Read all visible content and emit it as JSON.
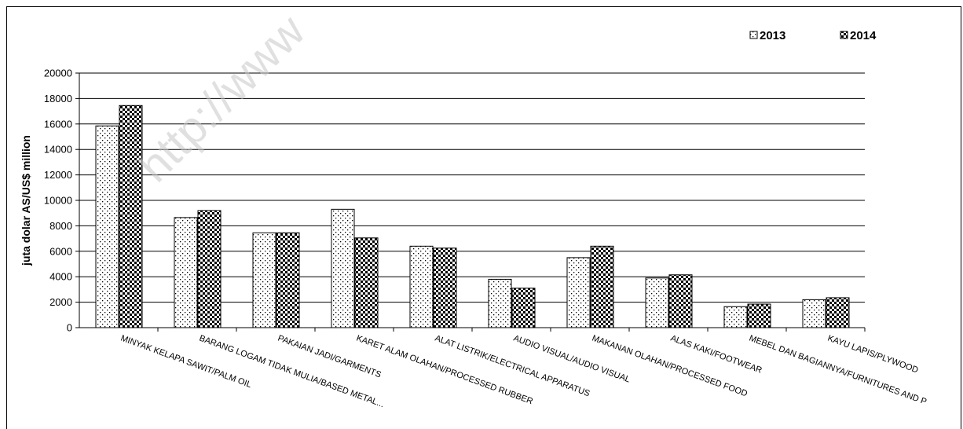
{
  "watermark": "http://www",
  "chart_data": {
    "type": "bar",
    "title": "",
    "xlabel": "",
    "ylabel": "juta dolar AS/US$ million",
    "ylim": [
      0,
      20000
    ],
    "yticks": [
      0,
      2000,
      4000,
      6000,
      8000,
      10000,
      12000,
      14000,
      16000,
      18000,
      20000
    ],
    "grid": true,
    "legend_position": "top-right",
    "categories": [
      "MINYAK KELAPA SAWIT/PALM OIL",
      "BARANG LOGAM TIDAK MULIA/BASED METAL...",
      "PAKAIAN JADI/GARMENTS",
      "KARET ALAM OLAHAN/PROCESSED RUBBER",
      "ALAT LISTRIK/ELECTRICAL APPARATUS",
      "AUDIO VISUAL/AUDIO VISUAL",
      "MAKANAN OLAHAN/PROCESSED FOOD",
      "ALAS KAKI/FOOTWEAR",
      "MEBEL DAN BAGIANNYA/FURNITURES AND P",
      "KAYU LAPIS/PLYWOOD"
    ],
    "series": [
      {
        "name": "2013",
        "pattern": "dots",
        "values": [
          15850,
          8650,
          7450,
          9300,
          6400,
          3800,
          5500,
          3900,
          1650,
          2200
        ]
      },
      {
        "name": "2014",
        "pattern": "checker",
        "values": [
          17450,
          9200,
          7450,
          7050,
          6250,
          3100,
          6400,
          4150,
          1850,
          2350
        ]
      }
    ]
  }
}
